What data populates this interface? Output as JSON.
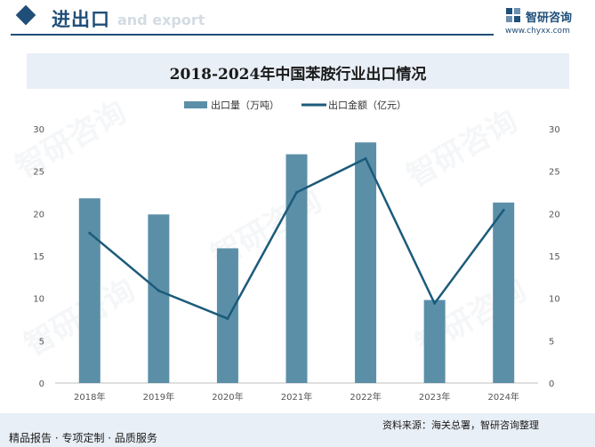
{
  "header": {
    "title": "进出口",
    "subtitle": "and export",
    "logo_name": "智研咨询",
    "logo_url": "www.chyxx.com"
  },
  "watermark": "智研咨询",
  "colors": {
    "bar": "#5b8fa8",
    "line": "#1b5b7a",
    "brand": "#1f4e79",
    "band": "#e9eff6"
  },
  "footer": {
    "left": "精品报告 · 专项定制 · 品质服务",
    "right": "资料来源：海关总署，智研咨询整理"
  },
  "chart_data": {
    "type": "bar",
    "title": "2018-2024年中国苯胺行业出口情况",
    "categories": [
      "2018年",
      "2019年",
      "2020年",
      "2021年",
      "2022年",
      "2023年",
      "2024年"
    ],
    "series": [
      {
        "name": "出口量（万吨）",
        "type": "bar",
        "axis": "left",
        "values": [
          21.8,
          19.9,
          15.9,
          27.0,
          28.4,
          9.8,
          21.3
        ]
      },
      {
        "name": "出口金额（亿元）",
        "type": "line",
        "axis": "right",
        "values": [
          17.7,
          10.9,
          7.6,
          22.5,
          26.5,
          9.4,
          20.4
        ]
      }
    ],
    "y_left": {
      "min": 0,
      "max": 30,
      "ticks": [
        0,
        5,
        10,
        15,
        20,
        25,
        30
      ]
    },
    "y_right": {
      "min": 0,
      "max": 30,
      "ticks": [
        0,
        5,
        10,
        15,
        20,
        25,
        30
      ]
    },
    "legend": "top-center",
    "grid": false
  }
}
